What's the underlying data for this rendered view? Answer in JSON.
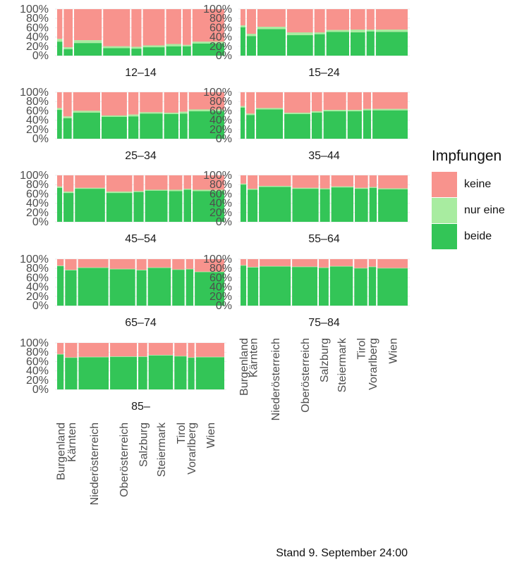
{
  "chart_data": {
    "type": "mosaic",
    "subtitle": "Stand 9. September 24:00",
    "legend": {
      "title": "Impfungen",
      "entries": [
        "keine",
        "nur eine",
        "beide"
      ],
      "colors": {
        "keine": "#F8938D",
        "nur eine": "#A8ECA0",
        "beide": "#33C557"
      }
    },
    "y_ticks": [
      "0%",
      "20%",
      "40%",
      "60%",
      "80%",
      "100%"
    ],
    "regions": [
      "Burgenland",
      "Kärnten",
      "Niederösterreich",
      "Oberösterreich",
      "Salzburg",
      "Steiermark",
      "Tirol",
      "Vorarlberg",
      "Wien"
    ],
    "panels": [
      {
        "label": "12–14",
        "widths": [
          0.031,
          0.053,
          0.165,
          0.16,
          0.06,
          0.13,
          0.09,
          0.05,
          0.19
        ],
        "beide": [
          0.3,
          0.14,
          0.27,
          0.16,
          0.15,
          0.18,
          0.2,
          0.2,
          0.26
        ],
        "nur_eine": [
          0.06,
          0.04,
          0.06,
          0.04,
          0.04,
          0.04,
          0.05,
          0.03,
          0.04
        ]
      },
      {
        "label": "15–24",
        "widths": [
          0.029,
          0.055,
          0.168,
          0.155,
          0.063,
          0.136,
          0.087,
          0.047,
          0.19
        ],
        "beide": [
          0.61,
          0.42,
          0.57,
          0.44,
          0.46,
          0.51,
          0.5,
          0.52,
          0.51
        ],
        "nur_eine": [
          0.04,
          0.05,
          0.05,
          0.06,
          0.04,
          0.04,
          0.06,
          0.04,
          0.05
        ]
      },
      {
        "label": "25–34",
        "widths": [
          0.028,
          0.05,
          0.16,
          0.15,
          0.06,
          0.135,
          0.085,
          0.045,
          0.21
        ],
        "beide": [
          0.62,
          0.44,
          0.56,
          0.47,
          0.48,
          0.54,
          0.53,
          0.54,
          0.59
        ],
        "nur_eine": [
          0.04,
          0.04,
          0.04,
          0.03,
          0.04,
          0.03,
          0.03,
          0.04,
          0.04
        ]
      },
      {
        "label": "35–44",
        "widths": [
          0.026,
          0.05,
          0.16,
          0.155,
          0.062,
          0.135,
          0.085,
          0.047,
          0.21
        ],
        "beide": [
          0.67,
          0.51,
          0.63,
          0.53,
          0.56,
          0.59,
          0.59,
          0.61,
          0.61
        ],
        "nur_eine": [
          0.03,
          0.03,
          0.03,
          0.03,
          0.03,
          0.03,
          0.03,
          0.03,
          0.03
        ]
      },
      {
        "label": "45–54",
        "widths": [
          0.03,
          0.06,
          0.18,
          0.155,
          0.06,
          0.135,
          0.08,
          0.045,
          0.19
        ],
        "beide": [
          0.73,
          0.62,
          0.71,
          0.62,
          0.64,
          0.67,
          0.66,
          0.69,
          0.66
        ],
        "nur_eine": [
          0.03,
          0.03,
          0.02,
          0.03,
          0.02,
          0.02,
          0.03,
          0.02,
          0.03
        ]
      },
      {
        "label": "55–64",
        "widths": [
          0.035,
          0.06,
          0.195,
          0.16,
          0.06,
          0.135,
          0.08,
          0.045,
          0.18
        ],
        "beide": [
          0.8,
          0.69,
          0.75,
          0.71,
          0.7,
          0.74,
          0.71,
          0.73,
          0.7
        ],
        "nur_eine": [
          0.02,
          0.02,
          0.02,
          0.02,
          0.02,
          0.02,
          0.02,
          0.02,
          0.02
        ]
      },
      {
        "label": "65–74",
        "widths": [
          0.04,
          0.07,
          0.185,
          0.155,
          0.06,
          0.14,
          0.075,
          0.045,
          0.18
        ],
        "beide": [
          0.85,
          0.76,
          0.81,
          0.78,
          0.76,
          0.81,
          0.77,
          0.78,
          0.72
        ],
        "nur_eine": [
          0.01,
          0.01,
          0.01,
          0.01,
          0.01,
          0.01,
          0.01,
          0.01,
          0.01
        ]
      },
      {
        "label": "75–84",
        "widths": [
          0.035,
          0.065,
          0.19,
          0.155,
          0.06,
          0.14,
          0.08,
          0.045,
          0.185
        ],
        "beide": [
          0.86,
          0.82,
          0.84,
          0.83,
          0.81,
          0.84,
          0.8,
          0.83,
          0.8
        ],
        "nur_eine": [
          0.01,
          0.01,
          0.01,
          0.01,
          0.01,
          0.01,
          0.01,
          0.01,
          0.01
        ]
      },
      {
        "label": "85–",
        "widths": [
          0.04,
          0.075,
          0.185,
          0.165,
          0.055,
          0.15,
          0.075,
          0.04,
          0.175
        ],
        "beide": [
          0.75,
          0.68,
          0.69,
          0.7,
          0.7,
          0.73,
          0.71,
          0.68,
          0.69
        ],
        "nur_eine": [
          0.01,
          0.01,
          0.01,
          0.01,
          0.01,
          0.01,
          0.01,
          0.01,
          0.01
        ]
      }
    ]
  }
}
